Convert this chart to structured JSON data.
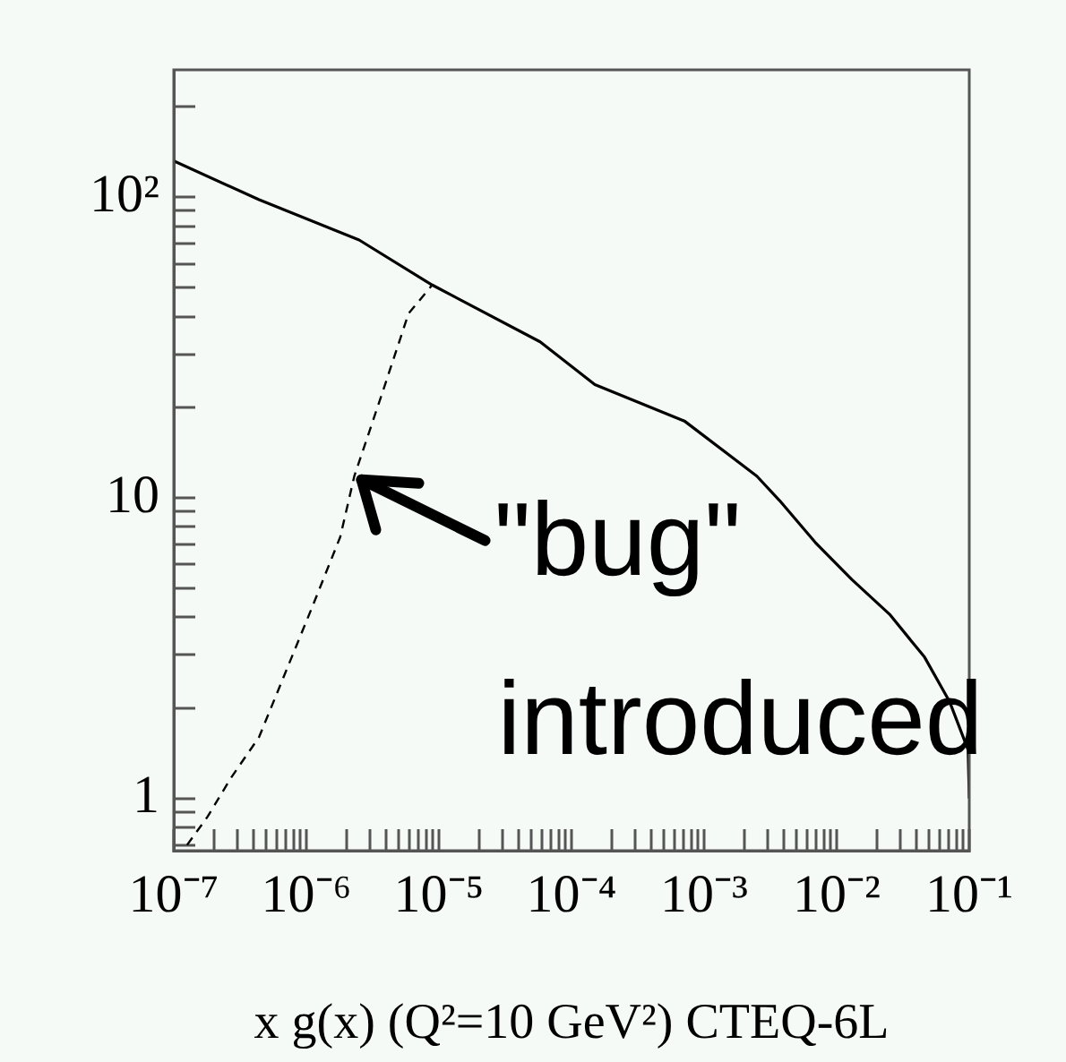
{
  "chart_data": {
    "type": "line",
    "xlabel": "x g(x) (Q²=10 GeV²) CTEQ-6L",
    "log": "xy",
    "grid": false,
    "legend": false,
    "marker": "none",
    "xlim": [
      1e-07,
      0.1
    ],
    "ylim": [
      0.67,
      265
    ],
    "xticks": [
      {
        "value": 1e-07,
        "label": "10⁻⁷"
      },
      {
        "value": 2e-07,
        "label": null
      },
      {
        "value": 3e-07,
        "label": null
      },
      {
        "value": 4e-07,
        "label": null
      },
      {
        "value": 5e-07,
        "label": null
      },
      {
        "value": 6e-07,
        "label": null
      },
      {
        "value": 7e-07,
        "label": null
      },
      {
        "value": 8e-07,
        "label": null
      },
      {
        "value": 9e-07,
        "label": null
      },
      {
        "value": 1e-06,
        "label": "10⁻⁶"
      },
      {
        "value": 2e-06,
        "label": null
      },
      {
        "value": 3e-06,
        "label": null
      },
      {
        "value": 4e-06,
        "label": null
      },
      {
        "value": 5e-06,
        "label": null
      },
      {
        "value": 6e-06,
        "label": null
      },
      {
        "value": 7e-06,
        "label": null
      },
      {
        "value": 8e-06,
        "label": null
      },
      {
        "value": 9e-06,
        "label": null
      },
      {
        "value": 1e-05,
        "label": "10⁻⁵"
      },
      {
        "value": 2e-05,
        "label": null
      },
      {
        "value": 3e-05,
        "label": null
      },
      {
        "value": 4e-05,
        "label": null
      },
      {
        "value": 5e-05,
        "label": null
      },
      {
        "value": 6e-05,
        "label": null
      },
      {
        "value": 7e-05,
        "label": null
      },
      {
        "value": 8e-05,
        "label": null
      },
      {
        "value": 9e-05,
        "label": null
      },
      {
        "value": 0.0001,
        "label": "10⁻⁴"
      },
      {
        "value": 0.0002,
        "label": null
      },
      {
        "value": 0.0003,
        "label": null
      },
      {
        "value": 0.0004,
        "label": null
      },
      {
        "value": 0.0005,
        "label": null
      },
      {
        "value": 0.0006,
        "label": null
      },
      {
        "value": 0.0007,
        "label": null
      },
      {
        "value": 0.0008,
        "label": null
      },
      {
        "value": 0.0009,
        "label": null
      },
      {
        "value": 0.001,
        "label": "10⁻³"
      },
      {
        "value": 0.002,
        "label": null
      },
      {
        "value": 0.003,
        "label": null
      },
      {
        "value": 0.004,
        "label": null
      },
      {
        "value": 0.005,
        "label": null
      },
      {
        "value": 0.006,
        "label": null
      },
      {
        "value": 0.007,
        "label": null
      },
      {
        "value": 0.008,
        "label": null
      },
      {
        "value": 0.009,
        "label": null
      },
      {
        "value": 0.01,
        "label": "10⁻²"
      },
      {
        "value": 0.02,
        "label": null
      },
      {
        "value": 0.03,
        "label": null
      },
      {
        "value": 0.04,
        "label": null
      },
      {
        "value": 0.05,
        "label": null
      },
      {
        "value": 0.06,
        "label": null
      },
      {
        "value": 0.07,
        "label": null
      },
      {
        "value": 0.08,
        "label": null
      },
      {
        "value": 0.09,
        "label": null
      },
      {
        "value": 0.1,
        "label": "10⁻¹"
      }
    ],
    "yticks": [
      {
        "value": 0.7,
        "label": null
      },
      {
        "value": 0.8,
        "label": null
      },
      {
        "value": 0.9,
        "label": null
      },
      1,
      {
        "value": 2,
        "label": null
      },
      {
        "value": 3,
        "label": null
      },
      {
        "value": 4,
        "label": null
      },
      {
        "value": 5,
        "label": null
      },
      {
        "value": 6,
        "label": null
      },
      {
        "value": 7,
        "label": null
      },
      {
        "value": 8,
        "label": null
      },
      {
        "value": 9,
        "label": null
      },
      10,
      {
        "value": 20,
        "label": null
      },
      {
        "value": 30,
        "label": null
      },
      {
        "value": 40,
        "label": null
      },
      {
        "value": 50,
        "label": null
      },
      {
        "value": 60,
        "label": null
      },
      {
        "value": 70,
        "label": null
      },
      {
        "value": 80,
        "label": null
      },
      {
        "value": 90,
        "label": null
      },
      {
        "value": 100,
        "label": "10²"
      },
      {
        "value": 200,
        "label": null
      }
    ],
    "series": [
      {
        "color": "#000000",
        "line_style": "solid",
        "x": [
          1e-07,
          4.4e-07,
          2.5e-06,
          8.9e-06,
          5.8e-05,
          0.00015,
          0.00071,
          0.0025,
          0.0037,
          0.0069,
          0.013,
          0.025,
          0.046,
          0.071,
          0.098,
          0.1
        ],
        "values": [
          132,
          98,
          72,
          51,
          33,
          23.8,
          18,
          11.8,
          9.8,
          7.1,
          5.35,
          4.1,
          2.95,
          2.1,
          1.45,
          1.0
        ]
      },
      {
        "color": "#000000",
        "line_style": "dashed",
        "x": [
          1.26e-07,
          1.8e-07,
          2.7e-07,
          4.4e-07,
          6.9e-07,
          1.1e-06,
          1.8e-06,
          2.3e-06,
          3.7e-06,
          5.9e-06,
          8.9e-06
        ],
        "values": [
          0.7,
          0.87,
          1.17,
          1.6,
          2.6,
          4.3,
          7.4,
          11.8,
          22,
          41,
          51
        ]
      }
    ],
    "annotations": [
      {
        "text": "\"bug\"\nintroduced",
        "x": 2.3e-06,
        "y": 11.8
      }
    ]
  }
}
